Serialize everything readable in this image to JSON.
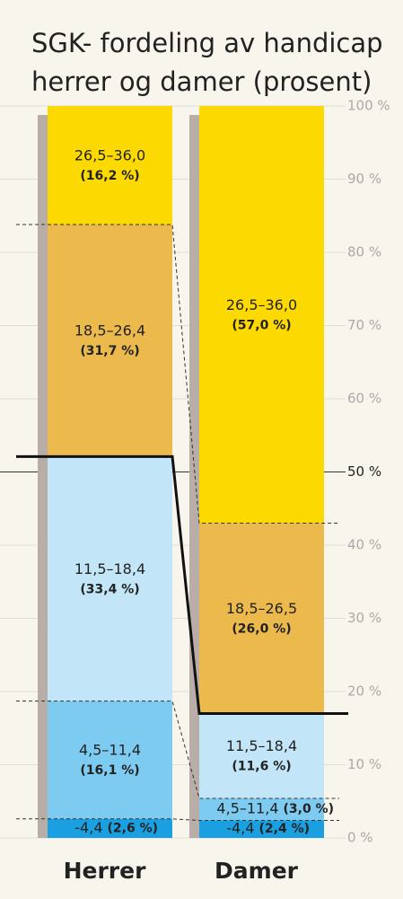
{
  "chart_data": {
    "type": "stacked_bar",
    "title": [
      "SGK- fordeling av handicap",
      "herrer og damer (prosent)"
    ],
    "categories": [
      "Herrer",
      "Damer"
    ],
    "series": [
      {
        "color": "#1a9fe0",
        "labels": [
          "-4,4",
          "-4,4"
        ],
        "values": [
          2.6,
          2.4
        ],
        "value_labels": [
          "(2,6 %)",
          "(2,4 %)"
        ]
      },
      {
        "color": "#7dcbf1",
        "labels": [
          "4,5–11,4",
          "4,5–11,4"
        ],
        "values": [
          16.1,
          3.0
        ],
        "value_labels": [
          "(16,1 %)",
          "(3,0 %)"
        ]
      },
      {
        "color": "#c2e5f7",
        "labels": [
          "11,5–18,4",
          "11,5–18,4"
        ],
        "values": [
          33.4,
          11.6
        ],
        "value_labels": [
          "(33,4 %)",
          "(11,6 %)"
        ]
      },
      {
        "color": "#ebb94c",
        "labels": [
          "18,5–26,4",
          "18,5–26,5"
        ],
        "values": [
          31.7,
          26.0
        ],
        "value_labels": [
          "(31,7 %)",
          "(26,0 %)"
        ]
      },
      {
        "color": "#fcd900",
        "labels": [
          "26,5–36,0",
          "26,5–36,0"
        ],
        "values": [
          16.2,
          57.0
        ],
        "value_labels": [
          "(16,2 %)",
          "(57,0 %)"
        ]
      }
    ],
    "ylim": [
      0,
      100
    ],
    "yticks": [
      {
        "value": 0,
        "label": "0 %"
      },
      {
        "value": 10,
        "label": "10 %"
      },
      {
        "value": 20,
        "label": "20 %"
      },
      {
        "value": 30,
        "label": "30 %"
      },
      {
        "value": 40,
        "label": "40 %"
      },
      {
        "value": 50,
        "label": "50 %"
      },
      {
        "value": 60,
        "label": "60 %"
      },
      {
        "value": 70,
        "label": "70 %"
      },
      {
        "value": 80,
        "label": "80 %"
      },
      {
        "value": 90,
        "label": "90 %"
      },
      {
        "value": 100,
        "label": "100 %"
      }
    ],
    "grid": true
  }
}
